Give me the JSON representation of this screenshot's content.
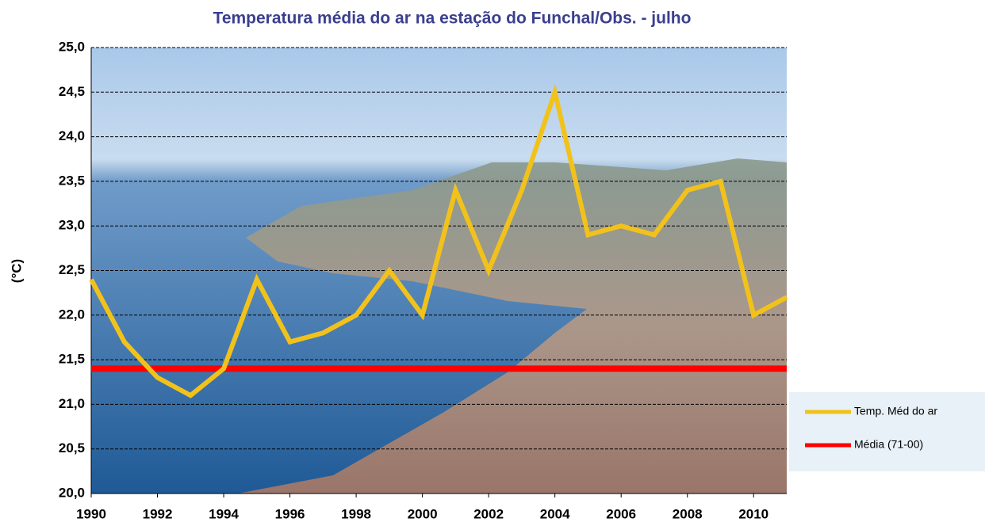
{
  "chart_data": {
    "type": "line",
    "title": "Temperatura média do ar na estação do Funchal/Obs. - julho",
    "y_label": "(°C)",
    "x": [
      1990,
      1991,
      1992,
      1993,
      1994,
      1995,
      1996,
      1997,
      1998,
      1999,
      2000,
      2001,
      2002,
      2003,
      2004,
      2005,
      2006,
      2007,
      2008,
      2009,
      2010,
      2011
    ],
    "series": [
      {
        "name": "Temp. Méd do ar",
        "color": "#f2c21b",
        "values": [
          22.4,
          21.7,
          21.3,
          21.1,
          21.4,
          22.4,
          21.7,
          21.8,
          22.0,
          22.5,
          22.0,
          23.4,
          22.5,
          23.4,
          24.5,
          22.9,
          23.0,
          22.9,
          23.4,
          23.5,
          22.0,
          22.2
        ]
      },
      {
        "name": "Média (71-00)",
        "color": "#ff0000",
        "values": [
          21.4,
          21.4,
          21.4,
          21.4,
          21.4,
          21.4,
          21.4,
          21.4,
          21.4,
          21.4,
          21.4,
          21.4,
          21.4,
          21.4,
          21.4,
          21.4,
          21.4,
          21.4,
          21.4,
          21.4,
          21.4,
          21.4
        ]
      }
    ],
    "xlim": [
      1990,
      2011
    ],
    "xticks": [
      1990,
      1992,
      1994,
      1996,
      1998,
      2000,
      2002,
      2004,
      2006,
      2008,
      2010
    ],
    "ylim": [
      20,
      25
    ],
    "yticks": [
      {
        "value": 20,
        "label": "20,0"
      },
      {
        "value": 20.5,
        "label": "20,5"
      },
      {
        "value": 21,
        "label": "21,0"
      },
      {
        "value": 21.5,
        "label": "21,5"
      },
      {
        "value": 22,
        "label": "22,0"
      },
      {
        "value": 22.5,
        "label": "22,5"
      },
      {
        "value": 23,
        "label": "23,0"
      },
      {
        "value": 23.5,
        "label": "23,5"
      },
      {
        "value": 24,
        "label": "24,0"
      },
      {
        "value": 24.5,
        "label": "24,5"
      },
      {
        "value": 25,
        "label": "25,0"
      }
    ],
    "grid": true,
    "legend_position": "right"
  }
}
